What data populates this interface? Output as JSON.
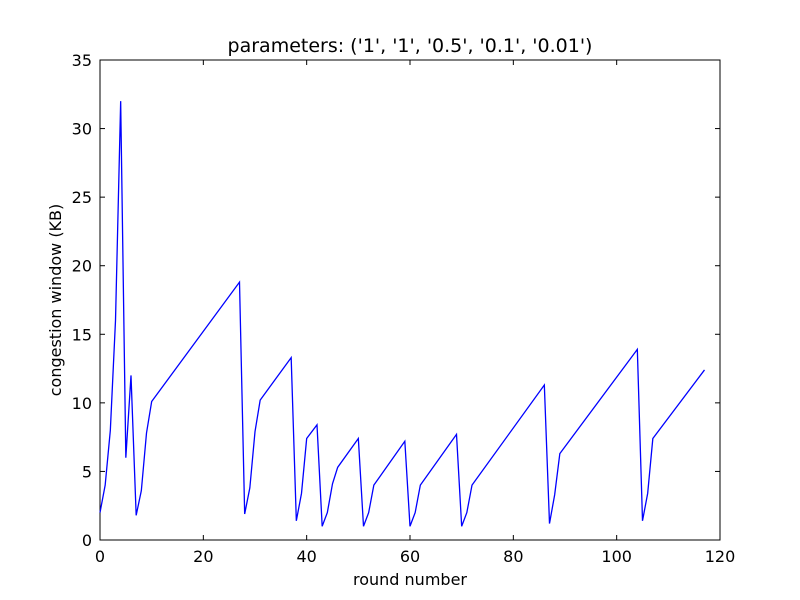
{
  "chart_data": {
    "type": "line",
    "title": "parameters: ('1', '1', '0.5', '0.1', '0.01')",
    "xlabel": "round number",
    "ylabel": "congestion window (KB)",
    "xlim": [
      0,
      120
    ],
    "ylim": [
      0,
      35
    ],
    "xticks": [
      0,
      20,
      40,
      60,
      80,
      100,
      120
    ],
    "yticks": [
      0,
      5,
      10,
      15,
      20,
      25,
      30,
      35
    ],
    "grid": false,
    "series": [
      {
        "color": "#0000ff",
        "points": [
          [
            0,
            2
          ],
          [
            1,
            4
          ],
          [
            2,
            8
          ],
          [
            3,
            16
          ],
          [
            4,
            32
          ],
          [
            5,
            6
          ],
          [
            6,
            12
          ],
          [
            7,
            1.8
          ],
          [
            8,
            3.6
          ],
          [
            9,
            7.8
          ],
          [
            10,
            10.1
          ],
          [
            27,
            18.8
          ],
          [
            28,
            1.9
          ],
          [
            29,
            3.8
          ],
          [
            30,
            7.9
          ],
          [
            31,
            10.2
          ],
          [
            37,
            13.3
          ],
          [
            38,
            1.4
          ],
          [
            39,
            3.4
          ],
          [
            40,
            7.4
          ],
          [
            42,
            8.4
          ],
          [
            43,
            1.0
          ],
          [
            44,
            2.0
          ],
          [
            45,
            4.1
          ],
          [
            46,
            5.3
          ],
          [
            50,
            7.4
          ],
          [
            51,
            1.0
          ],
          [
            52,
            2.0
          ],
          [
            53,
            4.0
          ],
          [
            59,
            7.2
          ],
          [
            60,
            1.0
          ],
          [
            61,
            2.0
          ],
          [
            62,
            4.0
          ],
          [
            69,
            7.7
          ],
          [
            70,
            1.0
          ],
          [
            71,
            2.0
          ],
          [
            72,
            4.0
          ],
          [
            86,
            11.3
          ],
          [
            87,
            1.2
          ],
          [
            88,
            3.3
          ],
          [
            89,
            6.3
          ],
          [
            104,
            13.9
          ],
          [
            105,
            1.4
          ],
          [
            106,
            3.4
          ],
          [
            107,
            7.4
          ],
          [
            117,
            12.4
          ]
        ]
      }
    ]
  }
}
